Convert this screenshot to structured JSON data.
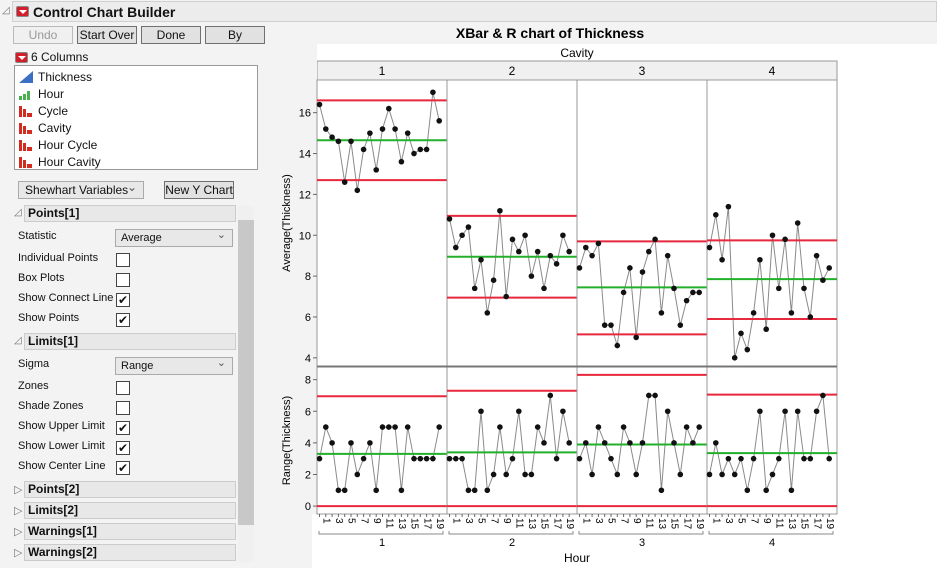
{
  "window": {
    "title": "Control Chart Builder"
  },
  "toolbar": {
    "undo": "Undo",
    "start_over": "Start Over",
    "done": "Done",
    "by": "By"
  },
  "columns": {
    "header": "6 Columns",
    "items": [
      {
        "label": "Thickness",
        "icon": "continuous-icon",
        "color": "#3b6fc4"
      },
      {
        "label": "Hour",
        "icon": "ordinal-icon",
        "color": "#4caf50"
      },
      {
        "label": "Cycle",
        "icon": "nominal-icon",
        "color": "#d22b1f"
      },
      {
        "label": "Cavity",
        "icon": "nominal-icon",
        "color": "#d22b1f"
      },
      {
        "label": "Hour Cycle",
        "icon": "nominal-icon",
        "color": "#d22b1f"
      },
      {
        "label": "Hour Cavity",
        "icon": "nominal-icon",
        "color": "#d22b1f"
      }
    ]
  },
  "chart_type_select": "Shewhart Variables",
  "new_y_chart": "New Y Chart",
  "points1": {
    "title": "Points[1]",
    "statistic_label": "Statistic",
    "statistic": "Average",
    "options": [
      {
        "label": "Individual Points",
        "checked": false
      },
      {
        "label": "Box Plots",
        "checked": false
      },
      {
        "label": "Show Connect Line",
        "checked": true
      },
      {
        "label": "Show Points",
        "checked": true
      }
    ]
  },
  "limits1": {
    "title": "Limits[1]",
    "sigma_label": "Sigma",
    "sigma": "Range",
    "options": [
      {
        "label": "Zones",
        "checked": false
      },
      {
        "label": "Shade Zones",
        "checked": false
      },
      {
        "label": "Show Upper Limit",
        "checked": true
      },
      {
        "label": "Show Lower Limit",
        "checked": true
      },
      {
        "label": "Show Center Line",
        "checked": true
      }
    ]
  },
  "collapsed_sections": [
    "Points[2]",
    "Limits[2]",
    "Warnings[1]",
    "Warnings[2]"
  ],
  "chart_data": {
    "type": "line",
    "title": "XBar & R chart of Thickness",
    "group_label": "Cavity",
    "groups": [
      "1",
      "2",
      "3",
      "4"
    ],
    "xlabel": "Hour",
    "x_ticks": [
      "1",
      "3",
      "5",
      "7",
      "9",
      "11",
      "13",
      "15",
      "17",
      "19"
    ],
    "hours_per_group": 20,
    "colors": {
      "limit": "#e8283c",
      "center": "#22b02a",
      "line": "#8a8a8a",
      "point": "#111111"
    },
    "xbar": {
      "ylabel": "Average(Thickness)",
      "ylim": [
        3.6,
        17.6
      ],
      "yticks": [
        4,
        6,
        8,
        10,
        12,
        14,
        16
      ],
      "series": [
        {
          "values": [
            16.4,
            15.2,
            14.8,
            14.6,
            12.6,
            14.6,
            12.2,
            14.2,
            15.0,
            13.2,
            15.2,
            16.2,
            15.2,
            13.6,
            15.0,
            14.0,
            14.2,
            14.2,
            17.0,
            15.6
          ],
          "ucl": 16.6,
          "cl": 14.65,
          "lcl": 12.7
        },
        {
          "values": [
            10.8,
            9.4,
            10.0,
            10.4,
            7.4,
            8.8,
            6.2,
            7.8,
            11.2,
            7.0,
            9.8,
            9.2,
            10.0,
            8.0,
            9.2,
            7.4,
            9.0,
            8.6,
            10.0,
            9.2
          ],
          "ucl": 10.95,
          "cl": 8.95,
          "lcl": 6.95
        },
        {
          "values": [
            8.4,
            9.4,
            9.0,
            9.6,
            5.6,
            5.6,
            4.6,
            7.2,
            8.4,
            5.0,
            8.2,
            9.2,
            9.8,
            6.2,
            9.0,
            7.4,
            5.6,
            6.8,
            7.2,
            7.2
          ],
          "ucl": 9.7,
          "cl": 7.45,
          "lcl": 5.15
        },
        {
          "values": [
            9.4,
            11.0,
            8.8,
            11.4,
            4.0,
            5.2,
            4.4,
            6.2,
            8.8,
            5.4,
            10.0,
            7.4,
            9.8,
            6.2,
            10.6,
            7.4,
            6.0,
            9.0,
            7.8,
            8.4
          ],
          "ucl": 9.75,
          "cl": 7.85,
          "lcl": 5.9
        }
      ]
    },
    "range": {
      "ylabel": "Range(Thickness)",
      "ylim": [
        -0.5,
        8.8
      ],
      "yticks": [
        0,
        2,
        4,
        6,
        8
      ],
      "series": [
        {
          "values": [
            3,
            5,
            4,
            1,
            1,
            4,
            2,
            3,
            4,
            1,
            5,
            5,
            5,
            1,
            5,
            3,
            3,
            3,
            3,
            5
          ],
          "ucl": 6.95,
          "cl": 3.3,
          "lcl": 0
        },
        {
          "values": [
            3,
            3,
            3,
            1,
            1,
            6,
            1,
            2,
            5,
            2,
            3,
            6,
            2,
            2,
            5,
            4,
            7,
            3,
            6,
            4
          ],
          "ucl": 7.3,
          "cl": 3.4,
          "lcl": 0
        },
        {
          "values": [
            3,
            4,
            2,
            5,
            4,
            3,
            2,
            5,
            4,
            2,
            4,
            7,
            7,
            1,
            6,
            4,
            2,
            5,
            4,
            5
          ],
          "ucl": 8.3,
          "cl": 3.9,
          "lcl": 0
        },
        {
          "values": [
            2,
            4,
            2,
            3,
            2,
            3,
            1,
            3,
            6,
            1,
            2,
            3,
            6,
            1,
            6,
            3,
            3,
            6,
            7,
            3
          ],
          "ucl": 7.05,
          "cl": 3.35,
          "lcl": 0
        }
      ]
    }
  }
}
